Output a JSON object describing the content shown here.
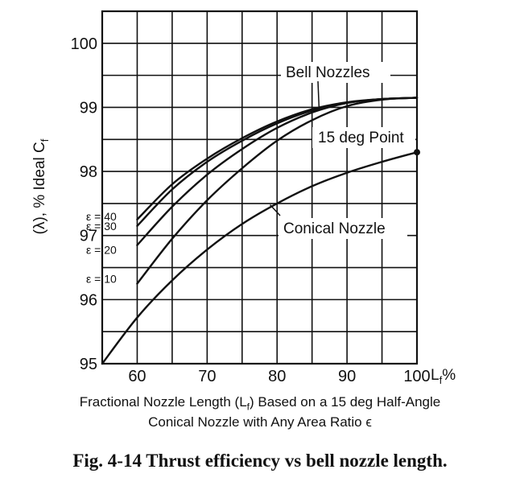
{
  "chart_data": {
    "type": "line",
    "xlabel": "Lf%",
    "ylabel": "(λ), % Ideal Cf",
    "xlim": [
      55,
      100
    ],
    "ylim": [
      95,
      100.5
    ],
    "grid": true,
    "xticks": [
      60,
      70,
      80,
      90,
      100
    ],
    "yticks": [
      95,
      96,
      97,
      98,
      99,
      100
    ],
    "series": [
      {
        "name": "ε = 40",
        "x": [
          60,
          65,
          70,
          75,
          80,
          85,
          90,
          95,
          100
        ],
        "y": [
          97.25,
          97.8,
          98.2,
          98.52,
          98.78,
          98.97,
          99.08,
          99.13,
          99.15
        ]
      },
      {
        "name": "ε = 30",
        "x": [
          60,
          65,
          70,
          75,
          80,
          85,
          90,
          95,
          100
        ],
        "y": [
          97.15,
          97.72,
          98.15,
          98.48,
          98.75,
          98.95,
          99.07,
          99.13,
          99.15
        ]
      },
      {
        "name": "ε = 20",
        "x": [
          60,
          65,
          70,
          75,
          80,
          85,
          90,
          95,
          100
        ],
        "y": [
          96.85,
          97.45,
          97.95,
          98.35,
          98.68,
          98.92,
          99.07,
          99.13,
          99.15
        ]
      },
      {
        "name": "ε = 10",
        "x": [
          60,
          65,
          70,
          75,
          80,
          85,
          90,
          95,
          100
        ],
        "y": [
          96.25,
          96.95,
          97.55,
          98.05,
          98.48,
          98.8,
          99.02,
          99.12,
          99.15
        ]
      },
      {
        "name": "Conical Nozzle",
        "x": [
          55,
          60,
          65,
          70,
          75,
          80,
          85,
          90,
          95,
          100
        ],
        "y": [
          95.0,
          95.72,
          96.3,
          96.78,
          97.18,
          97.5,
          97.77,
          97.98,
          98.15,
          98.3
        ]
      }
    ],
    "annotations": {
      "bell_nozzles": "Bell Nozzles",
      "point_15deg": "15 deg Point",
      "conical_nozzle": "Conical Nozzle"
    },
    "point_15deg": {
      "x": 100,
      "y": 98.3
    }
  },
  "axis": {
    "ylabel_prefix": "(λ), % Ideal C",
    "ylabel_sub": "f",
    "xunit_main": "L",
    "xunit_sub": "f",
    "xunit_suffix": "%"
  },
  "captions": {
    "line1_a": "Fractional Nozzle Length (L",
    "line1_sub": "f",
    "line1_b": ") Based on a 15 deg Half-Angle",
    "line2": "Conical Nozzle with Any Area Ratio ϵ",
    "figure": "Fig. 4-14 Thrust efficiency vs bell nozzle length."
  }
}
